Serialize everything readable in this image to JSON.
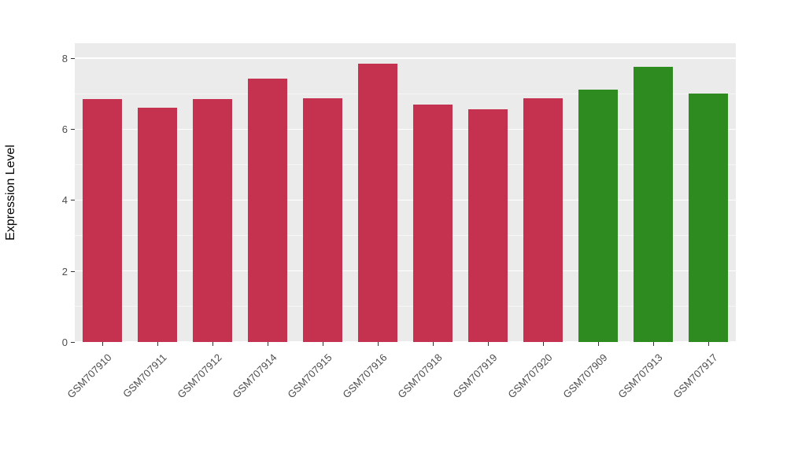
{
  "chart_data": {
    "type": "bar",
    "title": "",
    "xlabel": "",
    "ylabel": "Expression Level",
    "categories": [
      "GSM707910",
      "GSM707911",
      "GSM707912",
      "GSM707914",
      "GSM707915",
      "GSM707916",
      "GSM707918",
      "GSM707919",
      "GSM707920",
      "GSM707909",
      "GSM707913",
      "GSM707917"
    ],
    "values": [
      6.85,
      6.6,
      6.85,
      7.42,
      6.88,
      7.85,
      6.7,
      6.55,
      6.88,
      7.12,
      7.75,
      7.0
    ],
    "groups": [
      "red",
      "red",
      "red",
      "red",
      "red",
      "red",
      "red",
      "red",
      "red",
      "green",
      "green",
      "green"
    ],
    "bar_colors": [
      "#C4324F",
      "#C4324F",
      "#C4324F",
      "#C4324F",
      "#C4324F",
      "#C4324F",
      "#C4324F",
      "#C4324F",
      "#C4324F",
      "#2E8B1F",
      "#2E8B1F",
      "#2E8B1F"
    ],
    "ylim": [
      0,
      8.42
    ],
    "yticks": [
      0,
      2,
      4,
      6,
      8
    ],
    "yticks_minor": [
      1,
      3,
      5,
      7
    ],
    "grid": "on",
    "legend": "none",
    "panel_bg": "#EBEBEB",
    "grid_major_color": "#FFFFFF",
    "grid_minor_color": "#FFFFFF",
    "tick_color": "#333333",
    "tick_label_color": "#4D4D4D",
    "axis_label_color": "#000000"
  }
}
